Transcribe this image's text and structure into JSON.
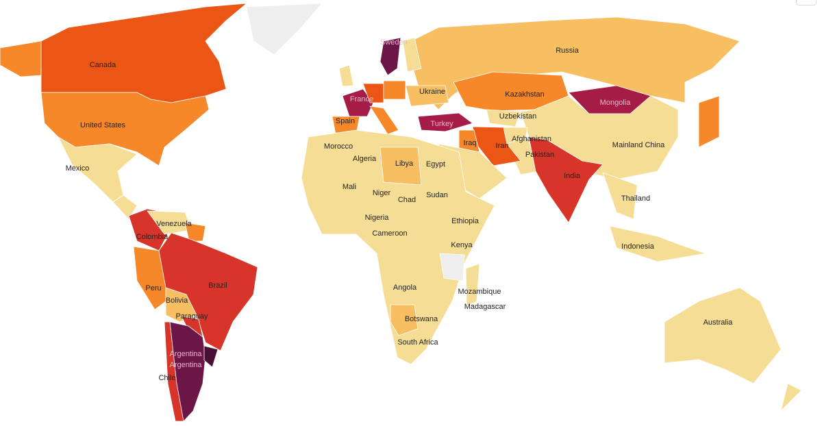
{
  "scale_colors": {
    "missing": "#eeeeee",
    "level1": "#f6dd96",
    "level2": "#f7be62",
    "level3": "#f7882a",
    "level4": "#ec5614",
    "level5": "#d8352a",
    "level6": "#a51c47",
    "level7": "#6c1547",
    "level8": "#4a0f34"
  },
  "countries": [
    {
      "id": "canada",
      "label": "Canada",
      "level": "level4"
    },
    {
      "id": "alaska",
      "label": "",
      "level": "level3"
    },
    {
      "id": "greenland",
      "label": "",
      "level": "missing"
    },
    {
      "id": "united-states",
      "label": "United States",
      "level": "level3"
    },
    {
      "id": "mexico",
      "label": "Mexico",
      "level": "level1"
    },
    {
      "id": "central-america",
      "label": "",
      "level": "level1"
    },
    {
      "id": "colombia",
      "label": "Colombia",
      "level": "level5"
    },
    {
      "id": "venezuela",
      "label": "Venezuela",
      "level": "level1"
    },
    {
      "id": "guyana",
      "label": "",
      "level": "level3"
    },
    {
      "id": "peru",
      "label": "Peru",
      "level": "level3"
    },
    {
      "id": "brazil",
      "label": "Brazil",
      "level": "level5"
    },
    {
      "id": "bolivia",
      "label": "Bolivia",
      "level": "level2"
    },
    {
      "id": "paraguay",
      "label": "Paraguay",
      "level": "level5"
    },
    {
      "id": "chile",
      "label": "Chile",
      "level": "level5"
    },
    {
      "id": "argentina",
      "label": "Argentina",
      "level": "level7"
    },
    {
      "id": "uruguay",
      "label": "",
      "level": "level8"
    },
    {
      "id": "russia",
      "label": "Russia",
      "level": "level2"
    },
    {
      "id": "finland",
      "label": "",
      "level": "level1"
    },
    {
      "id": "sweden",
      "label": "Sweden",
      "level": "level7"
    },
    {
      "id": "uk",
      "label": "",
      "level": "level1"
    },
    {
      "id": "france",
      "label": "France",
      "level": "level6"
    },
    {
      "id": "spain",
      "label": "Spain",
      "level": "level3"
    },
    {
      "id": "germany",
      "label": "",
      "level": "level4"
    },
    {
      "id": "poland",
      "label": "",
      "level": "level3"
    },
    {
      "id": "ukraine",
      "label": "Ukraine",
      "level": "level2"
    },
    {
      "id": "italy",
      "label": "",
      "level": "level3"
    },
    {
      "id": "turkey",
      "label": "Turkey",
      "level": "level6"
    },
    {
      "id": "kazakhstan",
      "label": "Kazakhstan",
      "level": "level3"
    },
    {
      "id": "uzbekistan",
      "label": "Uzbekistan",
      "level": "level1"
    },
    {
      "id": "mongolia",
      "label": "Mongolia",
      "level": "level6"
    },
    {
      "id": "china",
      "label": "Mainland China",
      "level": "level1"
    },
    {
      "id": "afghanistan",
      "label": "Afghanistan",
      "level": "level1"
    },
    {
      "id": "pakistan",
      "label": "Pakistan",
      "level": "level1"
    },
    {
      "id": "iran",
      "label": "Iran",
      "level": "level4"
    },
    {
      "id": "iraq",
      "label": "Iraq",
      "level": "level3"
    },
    {
      "id": "saudi-arabia",
      "label": "",
      "level": "level1"
    },
    {
      "id": "india",
      "label": "India",
      "level": "level5"
    },
    {
      "id": "japan",
      "label": "",
      "level": "level3"
    },
    {
      "id": "thailand",
      "label": "Thailand",
      "level": "level1"
    },
    {
      "id": "indonesia",
      "label": "Indonesia",
      "level": "level1"
    },
    {
      "id": "africa",
      "label": "",
      "level": "level1"
    },
    {
      "id": "libya",
      "label": "Libya",
      "level": "level2"
    },
    {
      "id": "tanzania",
      "label": "",
      "level": "missing"
    },
    {
      "id": "botswana",
      "label": "Botswana",
      "level": "level2"
    },
    {
      "id": "madagascar",
      "label": "",
      "level": "level1"
    },
    {
      "id": "australia",
      "label": "Australia",
      "level": "level1"
    },
    {
      "id": "new-zealand",
      "label": "",
      "level": "level1"
    }
  ],
  "labels": {
    "morocco": "Morocco",
    "algeria": "Algeria",
    "egypt": "Egypt",
    "mali": "Mali",
    "niger": "Niger",
    "chad": "Chad",
    "sudan": "Sudan",
    "nigeria": "Nigeria",
    "ethiopia": "Ethiopia",
    "cameroon": "Cameroon",
    "kenya": "Kenya",
    "angola": "Angola",
    "mozambique": "Mozambique",
    "madagascar": "Madagascar",
    "south_africa": "South Africa",
    "argentina_2": "Argentina"
  }
}
